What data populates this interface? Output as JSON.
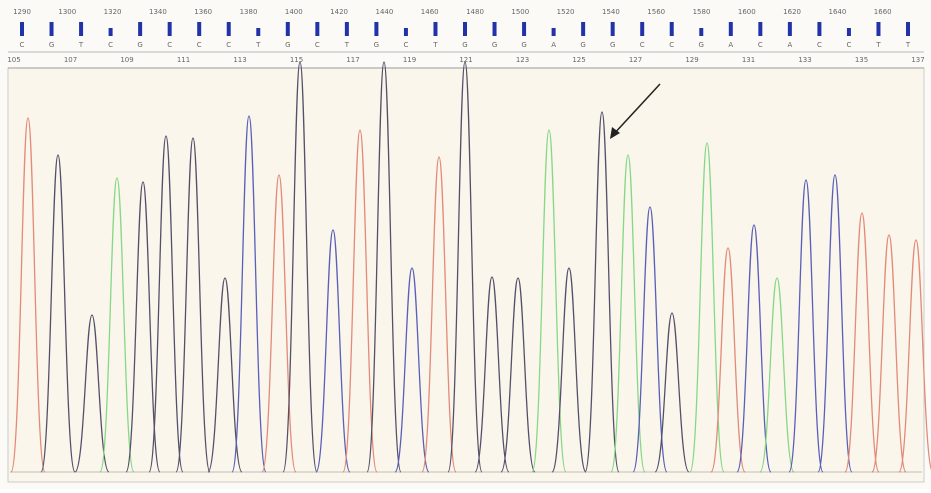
{
  "ruler": [
    1290,
    1300,
    1320,
    1340,
    1360,
    1380,
    1400,
    1420,
    1440,
    1460,
    1480,
    1500,
    1520,
    1540,
    1560,
    1580,
    1600,
    1620,
    1640,
    1660
  ],
  "bases": [
    "C",
    "G",
    "T",
    "C",
    "G",
    "C",
    "C",
    "C",
    "T",
    "G",
    "C",
    "T",
    "G",
    "C",
    "T",
    "G",
    "G",
    "G",
    "A",
    "G",
    "G",
    "C",
    "C",
    "G",
    "A",
    "C",
    "A",
    "C",
    "C",
    "T",
    "T"
  ],
  "positions": [
    105,
    107,
    109,
    111,
    113,
    115,
    117,
    119,
    121,
    123,
    125,
    127,
    129,
    131,
    133,
    135,
    137
  ]
}
